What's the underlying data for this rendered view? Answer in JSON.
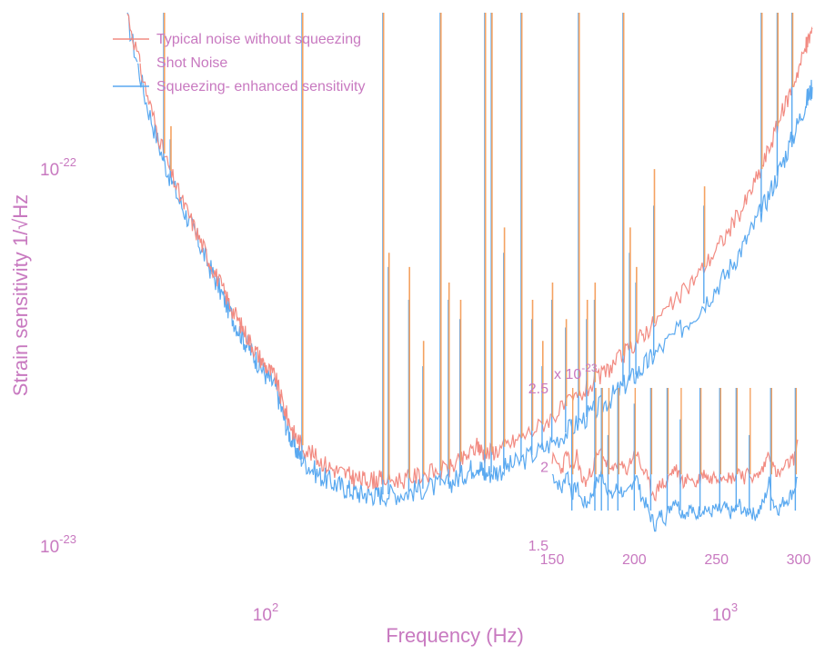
{
  "chart_data": {
    "type": "line",
    "xlabel": "Frequency (Hz)",
    "ylabel": "Strain sensitivity 1/√Hz",
    "xscale": "log",
    "yscale": "log",
    "xlim": [
      50,
      1550
    ],
    "ylim": [
      9e-24,
      2.6e-22
    ],
    "xticks": [
      {
        "value": 100,
        "base": "10",
        "exp": "2"
      },
      {
        "value": 1000,
        "base": "10",
        "exp": "3"
      }
    ],
    "yticks": [
      {
        "value": 1e-23,
        "base": "10",
        "exp": "-23"
      },
      {
        "value": 1e-22,
        "base": "10",
        "exp": "-22"
      }
    ],
    "colors": {
      "typical": "#f28b82",
      "shot": "#f4a261",
      "squeezed": "#5aa9f0",
      "text": "#c879c0"
    },
    "legend": {
      "placement": "top-left",
      "entries": [
        {
          "name": "Typical noise without squeezing",
          "color": "#f28b82"
        },
        {
          "name": "Shot Noise",
          "color": "#ffffff"
        },
        {
          "name": "Squeezing- enhanced sensitivity",
          "color": "#5aa9f0"
        }
      ]
    },
    "series": [
      {
        "name": "Typical noise without squeezing",
        "color": "#f28b82",
        "x": [
          50,
          55,
          60,
          65,
          70,
          75,
          80,
          85,
          90,
          95,
          100,
          105,
          110,
          115,
          120,
          130,
          140,
          150,
          160,
          170,
          180,
          200,
          220,
          250,
          270,
          290,
          300,
          320,
          350,
          400,
          450,
          500,
          550,
          600,
          650,
          700,
          800,
          900,
          1000,
          1100,
          1200,
          1300,
          1400,
          1500,
          1550
        ],
        "y": [
          2.6e-22,
          1.6e-22,
          1.1e-22,
          8.5e-23,
          7e-23,
          5.8e-23,
          4.9e-23,
          4.2e-23,
          3.7e-23,
          3.3e-23,
          3e-23,
          2.8e-23,
          2.3e-23,
          2e-23,
          1.85e-23,
          1.7e-23,
          1.6e-23,
          1.55e-23,
          1.5e-23,
          1.5e-23,
          1.5e-23,
          1.5e-23,
          1.55e-23,
          1.6e-23,
          1.7e-23,
          1.85e-23,
          1.75e-23,
          1.8e-23,
          1.9e-23,
          2.1e-23,
          2.35e-23,
          2.6e-23,
          2.9e-23,
          3.2e-23,
          3.55e-23,
          3.9e-23,
          4.6e-23,
          5.5e-23,
          6.6e-23,
          8e-23,
          1e-22,
          1.3e-22,
          1.65e-22,
          2.1e-22,
          2.35e-22
        ]
      },
      {
        "name": "Shot Noise",
        "color": "#f4a261",
        "x": [],
        "y": []
      },
      {
        "name": "Squeezing- enhanced sensitivity",
        "color": "#5aa9f0",
        "x": [
          50,
          55,
          60,
          65,
          70,
          75,
          80,
          85,
          90,
          95,
          100,
          105,
          110,
          115,
          120,
          130,
          140,
          150,
          160,
          170,
          180,
          200,
          220,
          250,
          270,
          290,
          300,
          320,
          350,
          400,
          450,
          500,
          550,
          600,
          650,
          700,
          800,
          900,
          1000,
          1100,
          1200,
          1300,
          1400,
          1500,
          1550
        ],
        "y": [
          2.5e-22,
          1.5e-22,
          1.05e-22,
          8.2e-23,
          6.8e-23,
          5.6e-23,
          4.7e-23,
          4e-23,
          3.5e-23,
          3.15e-23,
          2.85e-23,
          2.65e-23,
          2.15e-23,
          1.85e-23,
          1.7e-23,
          1.55e-23,
          1.47e-23,
          1.42e-23,
          1.38e-23,
          1.37e-23,
          1.37e-23,
          1.38e-23,
          1.42e-23,
          1.46e-23,
          1.55e-23,
          1.65e-23,
          1.55e-23,
          1.58e-23,
          1.65e-23,
          1.8e-23,
          2e-23,
          2.2e-23,
          2.4e-23,
          2.65e-23,
          2.9e-23,
          3.2e-23,
          3.75e-23,
          4.4e-23,
          5.2e-23,
          6.3e-23,
          7.7e-23,
          9.6e-23,
          1.2e-22,
          1.5e-22,
          1.65e-22
        ]
      }
    ],
    "spikes": [
      {
        "x": 60,
        "typ": 2.6e-22,
        "sq": 2.6e-22
      },
      {
        "x": 62,
        "typ": 1.3e-22,
        "sq": 1.2e-22
      },
      {
        "x": 120,
        "typ": 2.6e-22,
        "sq": 2.6e-22
      },
      {
        "x": 180,
        "typ": 2.6e-22,
        "sq": 2.6e-22
      },
      {
        "x": 185,
        "typ": 6e-23,
        "sq": 5.5e-23
      },
      {
        "x": 205,
        "typ": 5.5e-23,
        "sq": 4.5e-23
      },
      {
        "x": 220,
        "typ": 3.5e-23,
        "sq": 3e-23
      },
      {
        "x": 240,
        "typ": 2.6e-22,
        "sq": 2.6e-22
      },
      {
        "x": 250,
        "typ": 5e-23,
        "sq": 4.5e-23
      },
      {
        "x": 265,
        "typ": 4.5e-23,
        "sq": 4e-23
      },
      {
        "x": 300,
        "typ": 2.6e-22,
        "sq": 2.6e-22
      },
      {
        "x": 310,
        "typ": 2.6e-22,
        "sq": 2.6e-22
      },
      {
        "x": 330,
        "typ": 7e-23,
        "sq": 6e-23
      },
      {
        "x": 360,
        "typ": 2.6e-22,
        "sq": 2.6e-22
      },
      {
        "x": 380,
        "typ": 4.5e-23,
        "sq": 4e-23
      },
      {
        "x": 400,
        "typ": 3.5e-23,
        "sq": 3e-23
      },
      {
        "x": 420,
        "typ": 5e-23,
        "sq": 4.5e-23
      },
      {
        "x": 450,
        "typ": 4e-23,
        "sq": 3.8e-23
      },
      {
        "x": 480,
        "typ": 2.6e-22,
        "sq": 2.6e-22
      },
      {
        "x": 500,
        "typ": 4.5e-23,
        "sq": 4e-23
      },
      {
        "x": 520,
        "typ": 5e-23,
        "sq": 4.5e-23
      },
      {
        "x": 600,
        "typ": 2.6e-22,
        "sq": 2.6e-22
      },
      {
        "x": 620,
        "typ": 7e-23,
        "sq": 6e-23
      },
      {
        "x": 640,
        "typ": 5.5e-23,
        "sq": 5e-23
      },
      {
        "x": 700,
        "typ": 1e-22,
        "sq": 8e-23
      },
      {
        "x": 900,
        "typ": 9e-23,
        "sq": 8e-23
      },
      {
        "x": 1200,
        "typ": 2.6e-22,
        "sq": 2.6e-22
      },
      {
        "x": 1300,
        "typ": 2.6e-22,
        "sq": 2.6e-22
      },
      {
        "x": 1400,
        "typ": 2.6e-22,
        "sq": 2.6e-22
      }
    ],
    "inset": {
      "xlim": [
        150,
        300
      ],
      "ylim": [
        1.5,
        2.5
      ],
      "xticks": [
        150,
        200,
        250,
        300
      ],
      "ytick_labels": [
        "1.5",
        "2",
        "2.5"
      ],
      "ytick_values": [
        1.5,
        2.0,
        2.5
      ],
      "yscale_label": "x 10",
      "yscale_exp": "-23",
      "typical": {
        "x": [
          150,
          153,
          156,
          159,
          162,
          165,
          168,
          171,
          174,
          177,
          180,
          183,
          186,
          189,
          192,
          195,
          198,
          201,
          204,
          207,
          210,
          213,
          216,
          219,
          222,
          225,
          228,
          231,
          234,
          237,
          240,
          243,
          246,
          249,
          252,
          255,
          258,
          261,
          264,
          267,
          270,
          273,
          276,
          279,
          282,
          285,
          288,
          291,
          294,
          297,
          300
        ],
        "y": [
          2.05,
          2.02,
          1.98,
          2.1,
          1.95,
          2.08,
          1.92,
          1.9,
          1.98,
          2.05,
          2.1,
          2.02,
          1.95,
          2.03,
          2.0,
          1.97,
          2.04,
          2.1,
          2.0,
          1.95,
          1.85,
          1.82,
          1.9,
          1.88,
          1.95,
          1.99,
          1.92,
          1.9,
          1.94,
          1.88,
          1.93,
          1.96,
          1.91,
          1.95,
          1.93,
          1.96,
          1.92,
          1.94,
          1.98,
          1.93,
          1.96,
          1.92,
          1.95,
          2.0,
          2.1,
          1.98,
          1.94,
          1.99,
          2.02,
          2.05,
          2.15
        ]
      },
      "squeezed": {
        "x": [
          150,
          153,
          156,
          159,
          162,
          165,
          168,
          171,
          174,
          177,
          180,
          183,
          186,
          189,
          192,
          195,
          198,
          201,
          204,
          207,
          210,
          213,
          216,
          219,
          222,
          225,
          228,
          231,
          234,
          237,
          240,
          243,
          246,
          249,
          252,
          255,
          258,
          261,
          264,
          267,
          270,
          273,
          276,
          279,
          282,
          285,
          288,
          291,
          294,
          297,
          300
        ],
        "y": [
          1.95,
          1.9,
          1.85,
          1.98,
          1.82,
          1.88,
          1.78,
          1.76,
          1.82,
          1.9,
          1.96,
          1.88,
          1.8,
          1.86,
          1.85,
          1.8,
          1.88,
          1.95,
          1.82,
          1.76,
          1.68,
          1.62,
          1.7,
          1.67,
          1.75,
          1.8,
          1.72,
          1.7,
          1.74,
          1.68,
          1.72,
          1.74,
          1.7,
          1.73,
          1.71,
          1.74,
          1.7,
          1.72,
          1.76,
          1.7,
          1.73,
          1.69,
          1.72,
          1.78,
          1.9,
          1.76,
          1.73,
          1.78,
          1.8,
          1.85,
          1.95
        ]
      },
      "spikes": [
        {
          "x": 162,
          "typ": 2.5,
          "sq": 2.3
        },
        {
          "x": 176,
          "typ": 2.5,
          "sq": 2.5
        },
        {
          "x": 180,
          "typ": 2.5,
          "sq": 2.5
        },
        {
          "x": 184,
          "typ": 2.5,
          "sq": 2.2
        },
        {
          "x": 190,
          "typ": 2.5,
          "sq": 2.5
        },
        {
          "x": 200,
          "typ": 2.5,
          "sq": 2.4
        },
        {
          "x": 210,
          "typ": 2.5,
          "sq": 2.5
        },
        {
          "x": 220,
          "typ": 2.5,
          "sq": 2.5
        },
        {
          "x": 228,
          "typ": 2.5,
          "sq": 2.3
        },
        {
          "x": 240,
          "typ": 2.5,
          "sq": 2.5
        },
        {
          "x": 252,
          "typ": 2.5,
          "sq": 2.5
        },
        {
          "x": 262,
          "typ": 2.5,
          "sq": 2.5
        },
        {
          "x": 270,
          "typ": 2.5,
          "sq": 2.2
        },
        {
          "x": 283,
          "typ": 2.5,
          "sq": 2.5
        },
        {
          "x": 298,
          "typ": 2.5,
          "sq": 2.5
        }
      ]
    }
  }
}
